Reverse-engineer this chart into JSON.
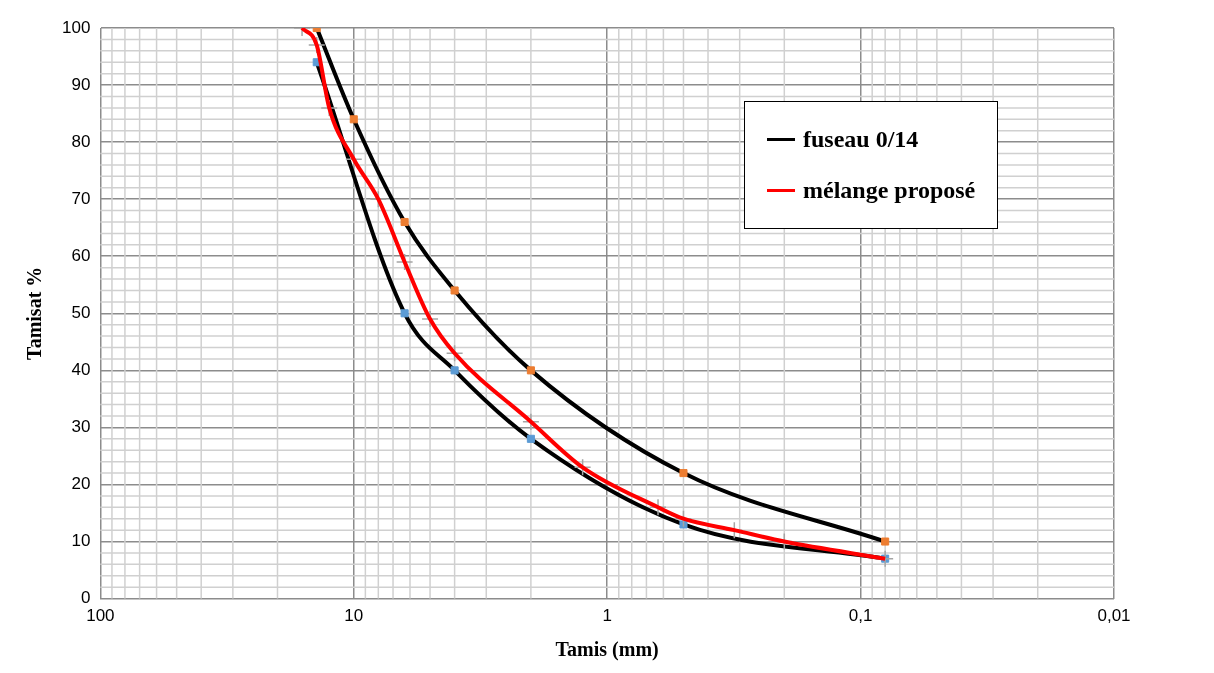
{
  "chart_data": {
    "type": "line",
    "xlabel": "Tamis (mm)",
    "ylabel": "Tamisat %",
    "xlim": [
      100,
      0.01
    ],
    "xticks": [
      100,
      10,
      1,
      {
        "value": 0.1,
        "label": "0,1"
      },
      {
        "value": 0.01,
        "label": "0,01"
      }
    ],
    "ylim": [
      0,
      100
    ],
    "yticks": [
      0,
      10,
      20,
      30,
      40,
      50,
      60,
      70,
      80,
      90,
      100
    ],
    "log": "x",
    "grid": true,
    "legend": "top right",
    "line_style": "solid",
    "series": [
      {
        "name": "fuseau 0/14",
        "type": "line",
        "marker": "none",
        "color": "#000000",
        "x": [
          14,
          10,
          6.3,
          4,
          2,
          0.5,
          0.08
        ],
        "values": [
          100,
          84,
          66,
          54,
          40,
          22,
          10
        ]
      },
      {
        "type": "line",
        "marker": "none",
        "color": "#000000",
        "x": [
          14,
          6.3,
          4,
          2,
          0.5,
          0.08
        ],
        "values": [
          94,
          50,
          40,
          28,
          13,
          7
        ]
      },
      {
        "type": "scatter",
        "marker": "square",
        "color": "#ed7d31",
        "x": [
          14,
          10,
          6.3,
          4,
          2,
          0.5,
          0.08
        ],
        "values": [
          100,
          84,
          66,
          54,
          40,
          22,
          10
        ]
      },
      {
        "type": "scatter",
        "marker": "square",
        "color": "#5b9bd5",
        "x": [
          14,
          6.3,
          4,
          2,
          0.5,
          0.08
        ],
        "values": [
          94,
          50,
          40,
          28,
          13,
          7
        ]
      },
      {
        "type": "scatter",
        "marker": "cross",
        "color": "#a5a5a5",
        "x": [
          16,
          14,
          12.5,
          10,
          8,
          6.3,
          5,
          4,
          2,
          1.25,
          0.63,
          0.5,
          0.315,
          0.2,
          0.08
        ],
        "values": [
          100,
          97,
          86,
          77,
          70,
          59,
          49,
          43,
          31,
          23,
          16,
          14,
          12,
          10,
          7
        ]
      },
      {
        "name": "mélange proposé",
        "type": "line",
        "marker": "none",
        "color": "#ff0000",
        "x": [
          16,
          14,
          12.5,
          10,
          8,
          6.3,
          5,
          4,
          2,
          1.25,
          0.63,
          0.5,
          0.315,
          0.2,
          0.08
        ],
        "values": [
          100,
          97,
          86,
          77,
          70,
          59,
          49,
          43,
          31,
          23,
          16,
          14,
          12,
          10,
          7
        ]
      }
    ]
  }
}
